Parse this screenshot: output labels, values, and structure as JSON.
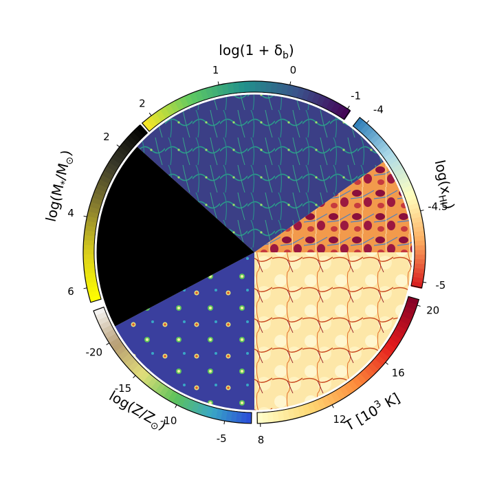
{
  "colors": {
    "viridis": [
      "#440154",
      "#3b528b",
      "#21918c",
      "#5ec962",
      "#fde725"
    ],
    "rdylbu": [
      "#2c7bb6",
      "#abd9e9",
      "#ffffbf",
      "#fdae61",
      "#d7191c"
    ],
    "ylorrd": [
      "#ffffcc",
      "#fed976",
      "#fd8d3c",
      "#e31a1c",
      "#800026"
    ],
    "gist_earth": [
      "#2a4ad8",
      "#39a7c6",
      "#5ec25a",
      "#e2df7a",
      "#b79d73",
      "#f8f8f8"
    ],
    "cividis_dark": [
      "#000000",
      "#3a3a2a",
      "#8a7f2f",
      "#dcd11c",
      "#ffff00"
    ]
  },
  "wedges": [
    {
      "id": "density",
      "title": "log(1 + δ",
      "subscript": "b",
      "title_close": ")",
      "ticks": [
        "-1",
        "0",
        "1",
        "2"
      ],
      "cmap": "viridis"
    },
    {
      "id": "neutral_fraction",
      "title": "log(x",
      "subscript": "HI",
      "title_close": ")",
      "ticks": [
        "-4",
        "-4.5",
        "-5"
      ],
      "cmap": "rdylbu"
    },
    {
      "id": "temperature",
      "title": "T [10",
      "superscript": "3",
      "title_close": " K]",
      "ticks": [
        "20",
        "16",
        "12",
        "8"
      ],
      "cmap": "ylorrd"
    },
    {
      "id": "metallicity",
      "title": "log(Z/Z",
      "subscript": "⊙",
      "title_close": ")",
      "ticks": [
        "-5",
        "-10",
        "-15",
        "-20"
      ],
      "cmap": "gist_earth"
    },
    {
      "id": "stellar_mass",
      "title": "log(M",
      "subscript": "*",
      "title_mid": "/M",
      "subscript2": "⊙",
      "title_close": ")",
      "ticks": [
        "6",
        "4",
        "2"
      ],
      "cmap": "cividis_dark"
    }
  ]
}
